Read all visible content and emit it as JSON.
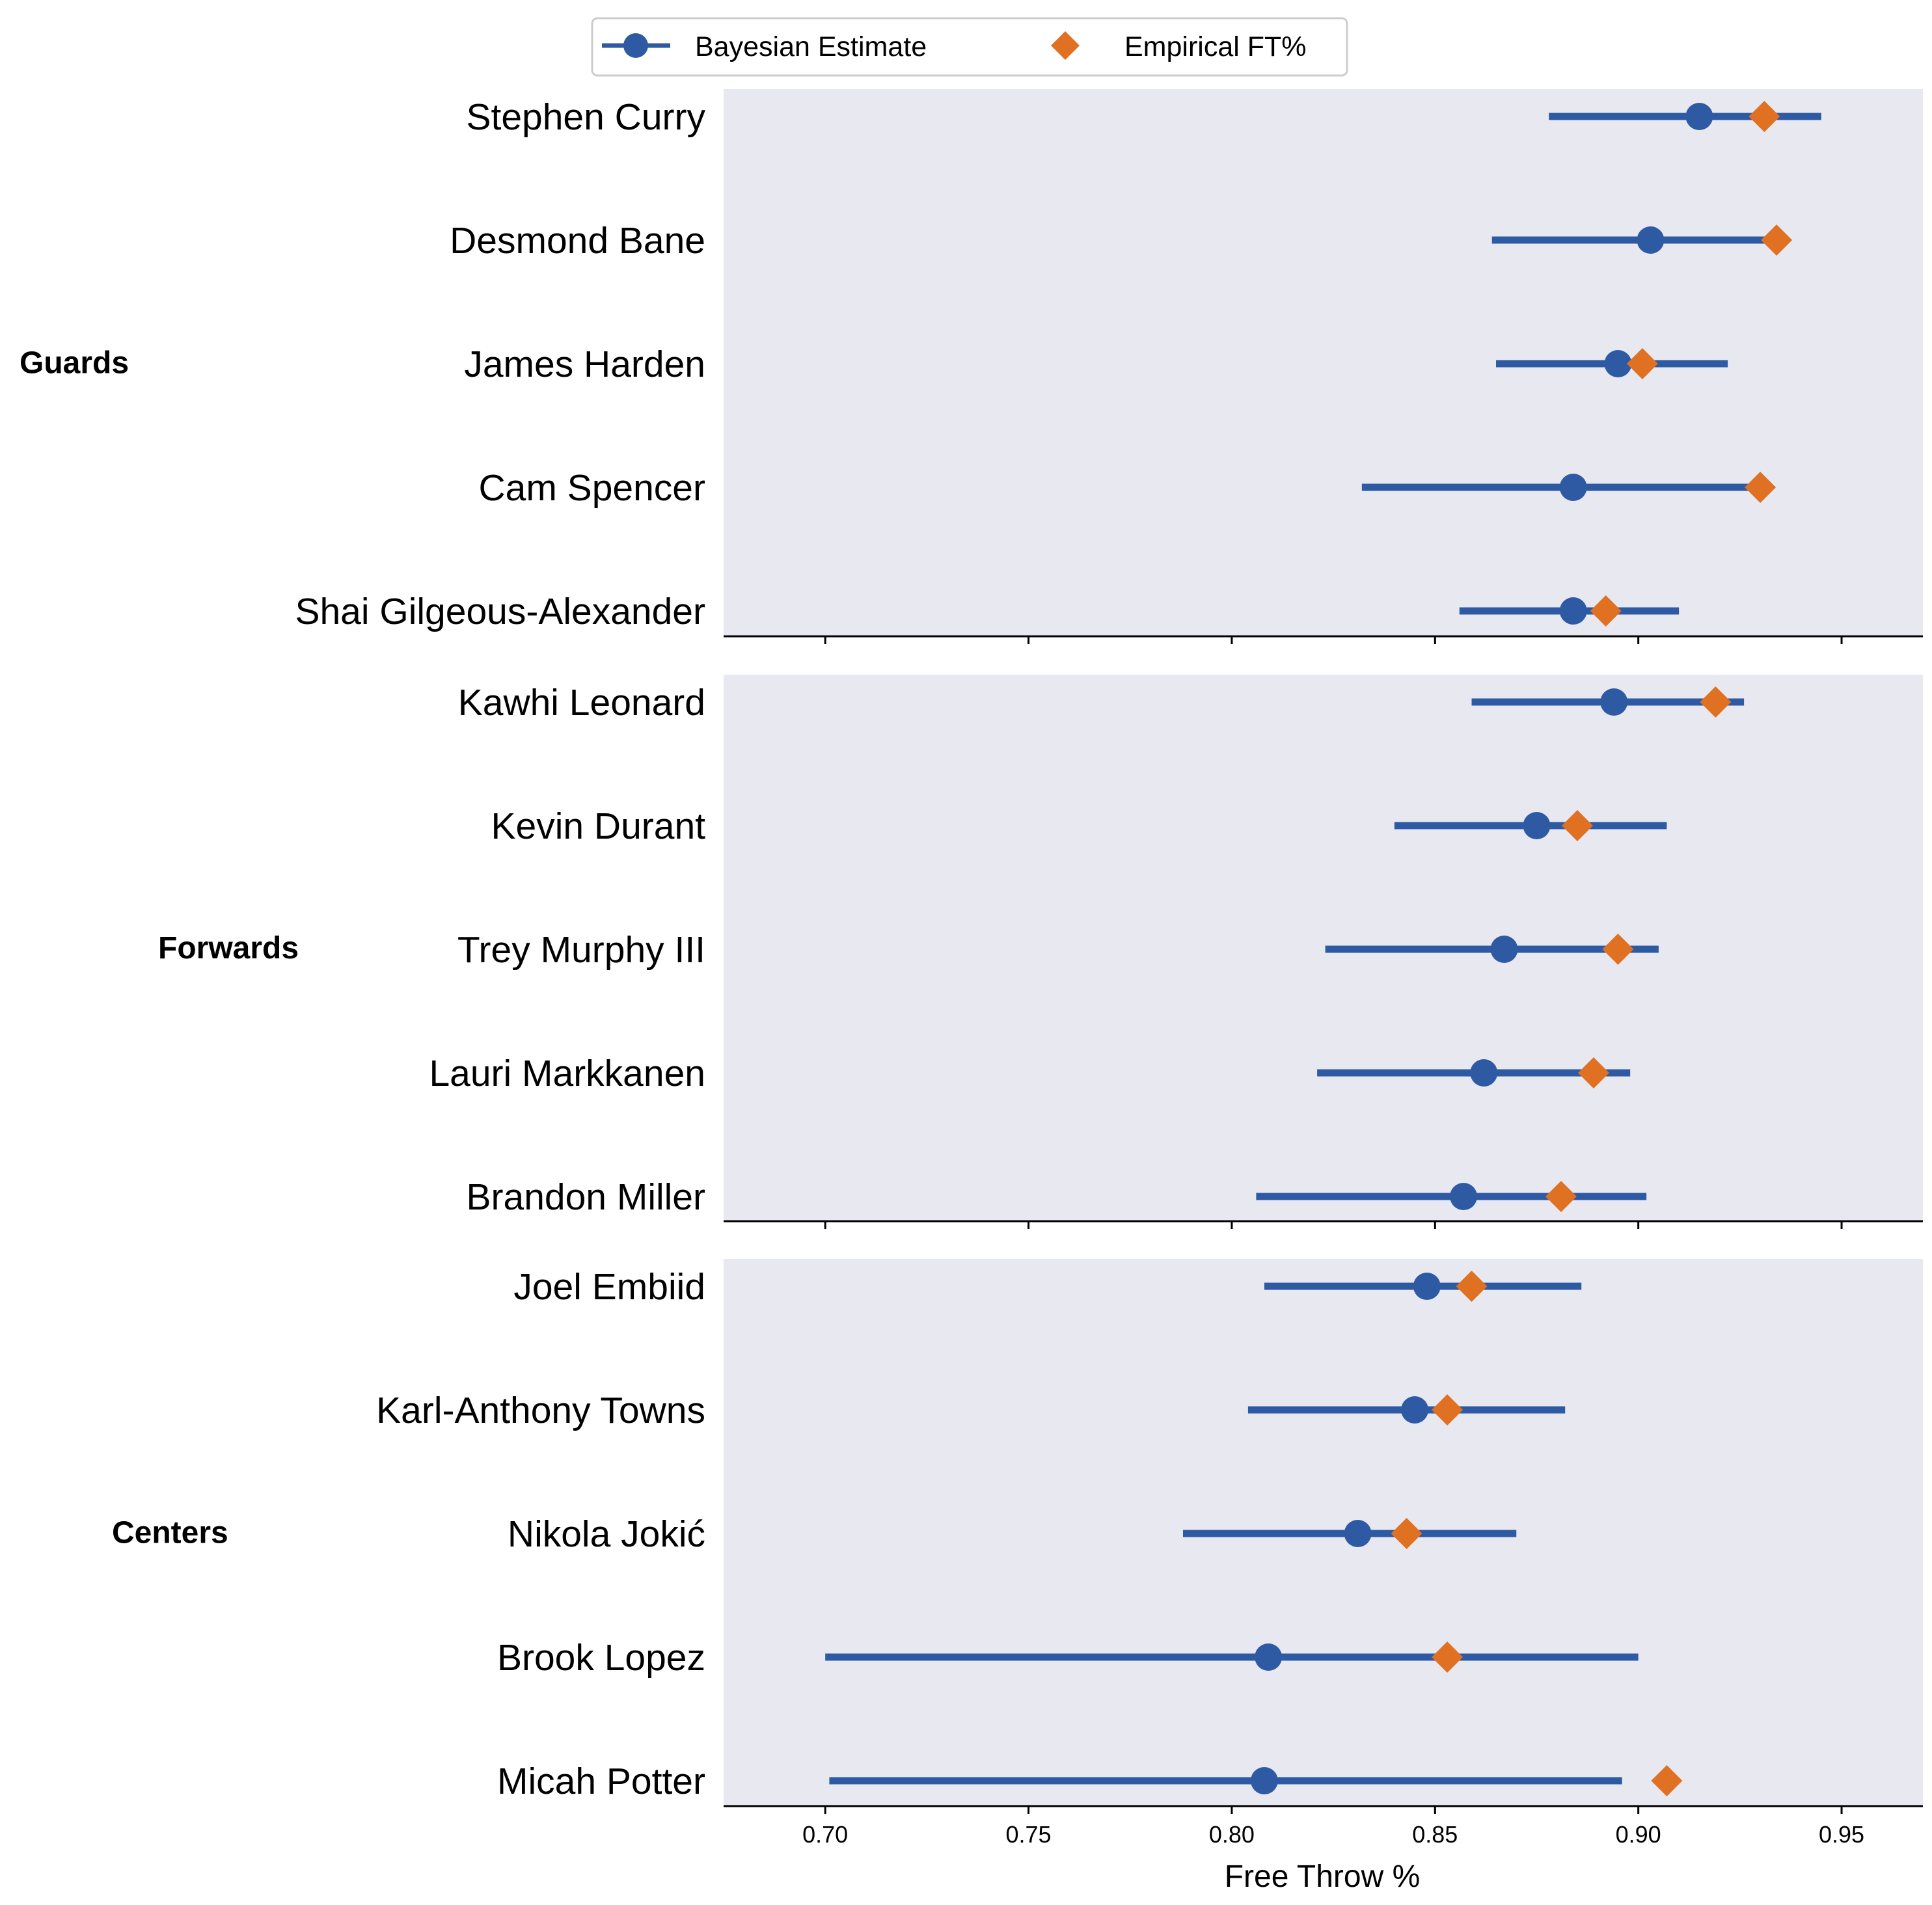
{
  "chart_data": {
    "type": "dot-interval",
    "xlabel": "Free Throw %",
    "xlim": [
      0.675,
      0.97
    ],
    "xticks": [
      0.7,
      0.75,
      0.8,
      0.85,
      0.9,
      0.95
    ],
    "xtick_labels": [
      "0.70",
      "0.75",
      "0.80",
      "0.85",
      "0.90",
      "0.95"
    ],
    "colors": {
      "bayesian": "#2e5aa4",
      "empirical": "#e07022",
      "panel_bg": "#e8e8f0"
    },
    "legend": {
      "placement": "top-center",
      "entries": [
        {
          "name": "Bayesian Estimate",
          "marker": "circle-line"
        },
        {
          "name": "Empirical FT%",
          "marker": "diamond"
        }
      ]
    },
    "groups": [
      {
        "name": "Guards",
        "players": [
          {
            "name": "Stephen Curry",
            "estimate": 0.915,
            "lower": 0.878,
            "upper": 0.945,
            "empirical": 0.931
          },
          {
            "name": "Desmond Bane",
            "estimate": 0.903,
            "lower": 0.864,
            "upper": 0.934,
            "empirical": 0.934
          },
          {
            "name": "James Harden",
            "estimate": 0.895,
            "lower": 0.865,
            "upper": 0.922,
            "empirical": 0.901
          },
          {
            "name": "Cam Spencer",
            "estimate": 0.884,
            "lower": 0.832,
            "upper": 0.93,
            "empirical": 0.93
          },
          {
            "name": "Shai Gilgeous-Alexander",
            "estimate": 0.884,
            "lower": 0.856,
            "upper": 0.91,
            "empirical": 0.892
          }
        ]
      },
      {
        "name": "Forwards",
        "players": [
          {
            "name": "Kawhi Leonard",
            "estimate": 0.894,
            "lower": 0.859,
            "upper": 0.926,
            "empirical": 0.919
          },
          {
            "name": "Kevin Durant",
            "estimate": 0.875,
            "lower": 0.84,
            "upper": 0.907,
            "empirical": 0.885
          },
          {
            "name": "Trey Murphy III",
            "estimate": 0.867,
            "lower": 0.823,
            "upper": 0.905,
            "empirical": 0.895
          },
          {
            "name": "Lauri Markkanen",
            "estimate": 0.862,
            "lower": 0.821,
            "upper": 0.898,
            "empirical": 0.889
          },
          {
            "name": "Brandon Miller",
            "estimate": 0.857,
            "lower": 0.806,
            "upper": 0.902,
            "empirical": 0.881
          }
        ]
      },
      {
        "name": "Centers",
        "players": [
          {
            "name": "Joel Embiid",
            "estimate": 0.848,
            "lower": 0.808,
            "upper": 0.886,
            "empirical": 0.859
          },
          {
            "name": "Karl-Anthony Towns",
            "estimate": 0.845,
            "lower": 0.804,
            "upper": 0.882,
            "empirical": 0.853
          },
          {
            "name": "Nikola Jokić",
            "estimate": 0.831,
            "lower": 0.788,
            "upper": 0.87,
            "empirical": 0.843
          },
          {
            "name": "Brook Lopez",
            "estimate": 0.809,
            "lower": 0.7,
            "upper": 0.9,
            "empirical": 0.853
          },
          {
            "name": "Micah Potter",
            "estimate": 0.808,
            "lower": 0.701,
            "upper": 0.896,
            "empirical": 0.907
          }
        ]
      }
    ]
  }
}
